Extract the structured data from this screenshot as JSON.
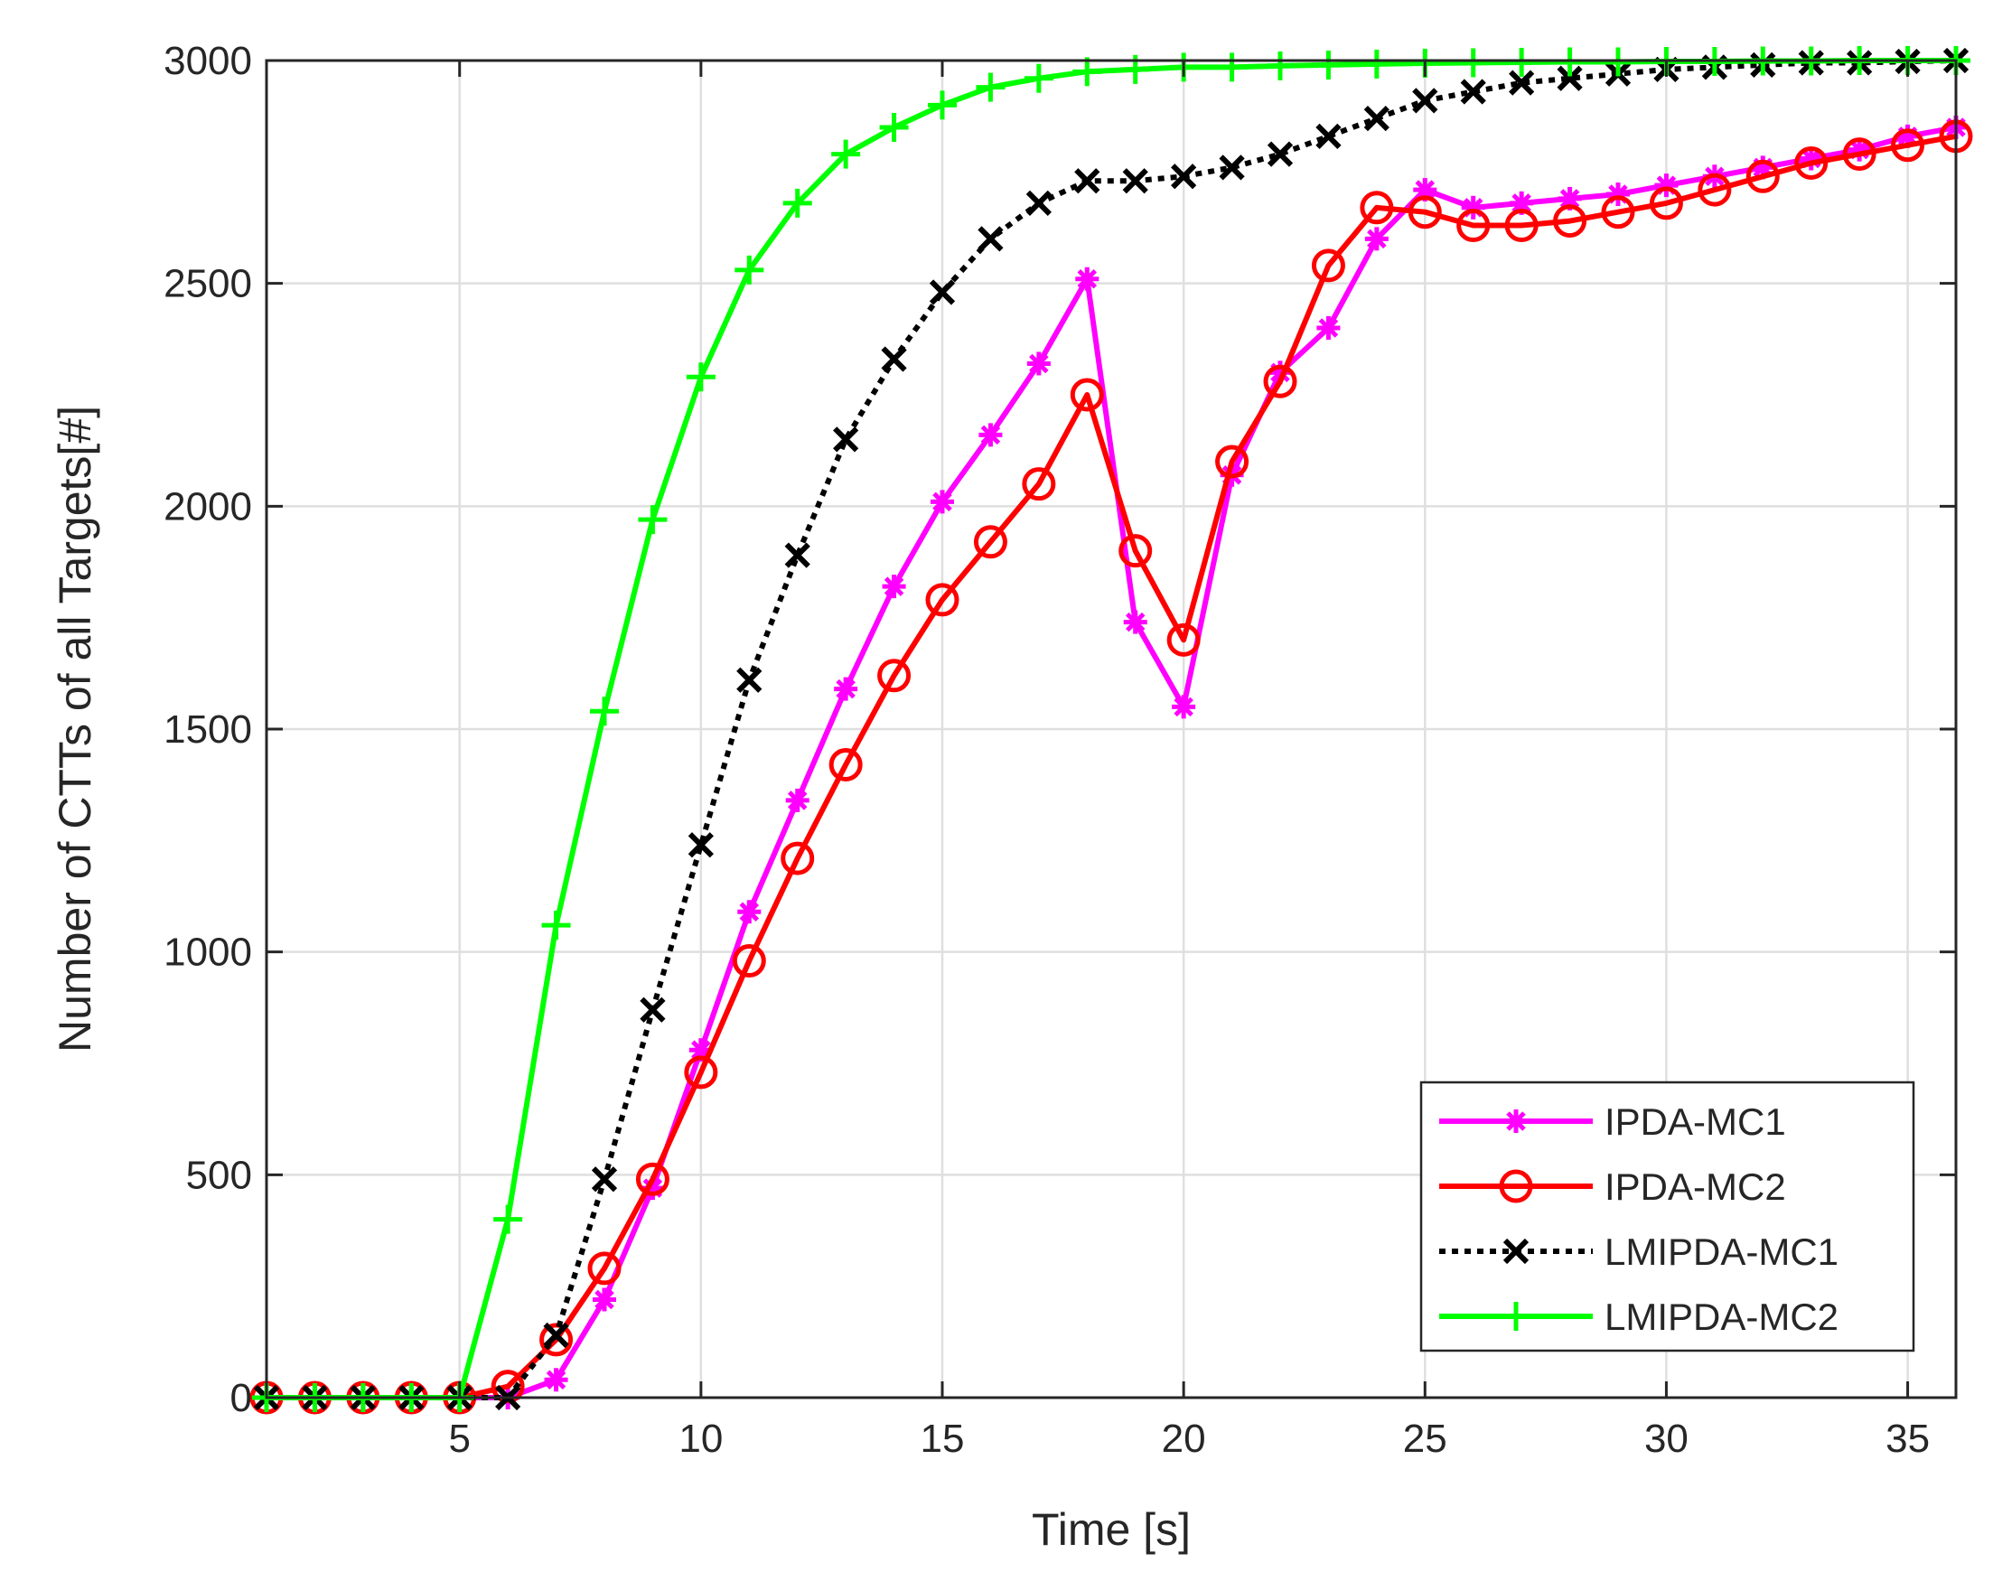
{
  "chart_data": {
    "type": "line",
    "title": "",
    "xlabel": "Time [s]",
    "ylabel": "Number of CTTs of all Targets[#]",
    "xlim": [
      1,
      36
    ],
    "ylim": [
      0,
      3000
    ],
    "xticks": [
      5,
      10,
      15,
      20,
      25,
      30,
      35
    ],
    "yticks": [
      0,
      500,
      1000,
      1500,
      2000,
      2500,
      3000
    ],
    "grid": true,
    "legend_position": "bottom-right",
    "x": [
      1,
      2,
      3,
      4,
      5,
      6,
      7,
      8,
      9,
      10,
      11,
      12,
      13,
      14,
      15,
      16,
      17,
      18,
      19,
      20,
      21,
      22,
      23,
      24,
      25,
      26,
      27,
      28,
      29,
      30,
      31,
      32,
      33,
      34,
      35,
      36
    ],
    "series": [
      {
        "name": "IPDA-MC1",
        "color": "#ff00ff",
        "line": "solid",
        "marker": "asterisk",
        "values": [
          0,
          0,
          0,
          0,
          0,
          0,
          40,
          220,
          470,
          780,
          1090,
          1340,
          1590,
          1820,
          2010,
          2160,
          2320,
          2510,
          1740,
          1550,
          2070,
          2300,
          2400,
          2600,
          2710,
          2670,
          2680,
          2690,
          2700,
          2720,
          2740,
          2760,
          2780,
          2800,
          2830,
          2850
        ]
      },
      {
        "name": "IPDA-MC2",
        "color": "#ff0000",
        "line": "solid",
        "marker": "circle",
        "values": [
          0,
          0,
          0,
          0,
          0,
          25,
          130,
          290,
          490,
          730,
          980,
          1210,
          1420,
          1620,
          1790,
          1920,
          2050,
          2250,
          1900,
          1700,
          2100,
          2280,
          2540,
          2670,
          2660,
          2630,
          2630,
          2640,
          2660,
          2680,
          2710,
          2740,
          2770,
          2790,
          2810,
          2830
        ]
      },
      {
        "name": "LMIPDA-MC1",
        "color": "#000000",
        "line": "dotted",
        "marker": "x",
        "values": [
          0,
          0,
          0,
          0,
          0,
          0,
          140,
          490,
          870,
          1240,
          1610,
          1890,
          2150,
          2330,
          2480,
          2600,
          2680,
          2730,
          2730,
          2740,
          2760,
          2790,
          2830,
          2870,
          2910,
          2930,
          2950,
          2960,
          2970,
          2980,
          2985,
          2990,
          2995,
          2995,
          2998,
          3000
        ]
      },
      {
        "name": "LMIPDA-MC2",
        "color": "#00ff00",
        "line": "solid",
        "marker": "plus",
        "values": [
          0,
          0,
          0,
          0,
          0,
          400,
          1060,
          1540,
          1970,
          2290,
          2530,
          2680,
          2790,
          2850,
          2900,
          2940,
          2960,
          2975,
          2980,
          2985,
          2985,
          2988,
          2990,
          2992,
          2994,
          2995,
          2996,
          2997,
          2997,
          2998,
          2998,
          2999,
          2999,
          3000,
          3000,
          3000
        ]
      }
    ]
  }
}
